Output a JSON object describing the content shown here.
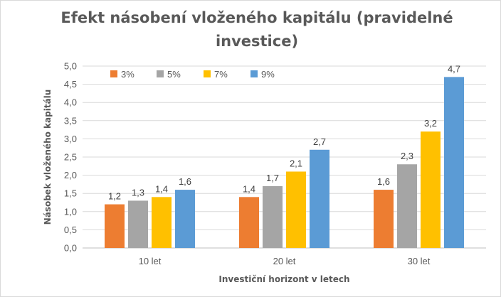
{
  "chart_data": {
    "type": "bar",
    "title": "Efekt násobení vloženého kapitálu (pravidelné investice)",
    "title_lines": [
      "Efekt násobení vloženého kapitálu (pravidelné",
      "investice)"
    ],
    "xlabel": "Investiční horizont v letech",
    "ylabel": "Násobek vloženého kapitálu",
    "categories": [
      "10 let",
      "20 let",
      "30 let"
    ],
    "ylim": [
      0,
      5
    ],
    "ytick_labels": [
      "0,0",
      "0,5",
      "1,0",
      "1,5",
      "2,0",
      "2,5",
      "3,0",
      "3,5",
      "4,0",
      "4,5",
      "5,0"
    ],
    "grid": true,
    "legend_position": "top-left",
    "series": [
      {
        "name": "3%",
        "color": "#ED7D31",
        "values": [
          1.2,
          1.4,
          1.6
        ],
        "labels": [
          "1,2",
          "1,4",
          "1,6"
        ]
      },
      {
        "name": "5%",
        "color": "#A5A5A5",
        "values": [
          1.3,
          1.7,
          2.3
        ],
        "labels": [
          "1,3",
          "1,7",
          "2,3"
        ]
      },
      {
        "name": "7%",
        "color": "#FFC000",
        "values": [
          1.4,
          2.1,
          3.2
        ],
        "labels": [
          "1,4",
          "2,1",
          "3,2"
        ]
      },
      {
        "name": "9%",
        "color": "#5B9BD5",
        "values": [
          1.6,
          2.7,
          4.7
        ],
        "labels": [
          "1,6",
          "2,7",
          "4,7"
        ]
      }
    ]
  }
}
